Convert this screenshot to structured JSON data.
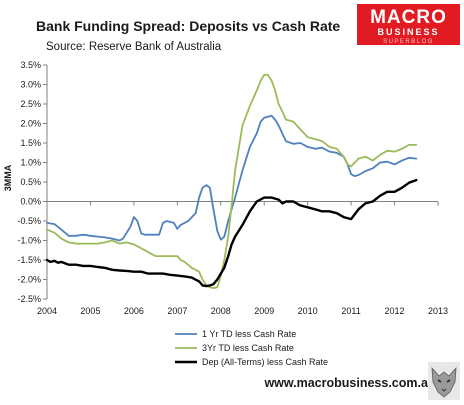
{
  "logo": {
    "main": "MACRO",
    "sub": "BUSINESS",
    "tag": "SUPERBLOG",
    "bg_color": "#e21b23",
    "bottom_icon": "wolf-head-icon"
  },
  "footer": {
    "url": "www.macrobusiness.com.au"
  },
  "chart_data": {
    "type": "line",
    "title": "Bank Funding Spread: Deposits vs Cash Rate",
    "subtitle": "Source: Reserve Bank of Australia",
    "ylabel": "3MMA",
    "xlabel": "",
    "xlim": [
      2004,
      2013
    ],
    "ylim": [
      -2.5,
      3.5
    ],
    "x_ticks": [
      2004,
      2005,
      2006,
      2007,
      2008,
      2009,
      2010,
      2011,
      2012,
      2013
    ],
    "x_tick_labels": [
      "2004",
      "2005",
      "2006",
      "2007",
      "2008",
      "2009",
      "2010",
      "2011",
      "2012",
      "2013"
    ],
    "y_ticks": [
      -2.5,
      -2.0,
      -1.5,
      -1.0,
      -0.5,
      0.0,
      0.5,
      1.0,
      1.5,
      2.0,
      2.5,
      3.0,
      3.5
    ],
    "y_tick_labels": [
      "-2.5%",
      "-2.0%",
      "-1.5%",
      "-1.0%",
      "-0.5%",
      "0.0%",
      "0.5%",
      "1.0%",
      "1.5%",
      "2.0%",
      "2.5%",
      "3.0%",
      "3.5%"
    ],
    "grid": false,
    "legend_position": "bottom-center",
    "series": [
      {
        "name": "1 Yr TD less Cash Rate",
        "color": "#4f81bd",
        "points": [
          [
            2004.0,
            -0.55
          ],
          [
            2004.17,
            -0.58
          ],
          [
            2004.33,
            -0.72
          ],
          [
            2004.5,
            -0.88
          ],
          [
            2004.67,
            -0.88
          ],
          [
            2004.83,
            -0.85
          ],
          [
            2005.0,
            -0.88
          ],
          [
            2005.17,
            -0.9
          ],
          [
            2005.33,
            -0.92
          ],
          [
            2005.5,
            -0.95
          ],
          [
            2005.67,
            -1.0
          ],
          [
            2005.75,
            -0.95
          ],
          [
            2005.92,
            -0.65
          ],
          [
            2006.0,
            -0.4
          ],
          [
            2006.08,
            -0.5
          ],
          [
            2006.17,
            -0.82
          ],
          [
            2006.25,
            -0.85
          ],
          [
            2006.42,
            -0.85
          ],
          [
            2006.58,
            -0.85
          ],
          [
            2006.67,
            -0.55
          ],
          [
            2006.75,
            -0.5
          ],
          [
            2006.92,
            -0.55
          ],
          [
            2007.0,
            -0.7
          ],
          [
            2007.08,
            -0.6
          ],
          [
            2007.25,
            -0.5
          ],
          [
            2007.42,
            -0.3
          ],
          [
            2007.5,
            0.1
          ],
          [
            2007.58,
            0.35
          ],
          [
            2007.67,
            0.42
          ],
          [
            2007.75,
            0.35
          ],
          [
            2007.83,
            -0.2
          ],
          [
            2007.92,
            -0.75
          ],
          [
            2008.0,
            -0.98
          ],
          [
            2008.08,
            -0.9
          ],
          [
            2008.17,
            -0.5
          ],
          [
            2008.33,
            0.1
          ],
          [
            2008.5,
            0.8
          ],
          [
            2008.67,
            1.4
          ],
          [
            2008.83,
            1.75
          ],
          [
            2008.92,
            2.05
          ],
          [
            2009.0,
            2.15
          ],
          [
            2009.17,
            2.2
          ],
          [
            2009.25,
            2.1
          ],
          [
            2009.33,
            1.95
          ],
          [
            2009.5,
            1.55
          ],
          [
            2009.67,
            1.48
          ],
          [
            2009.83,
            1.5
          ],
          [
            2010.0,
            1.4
          ],
          [
            2010.17,
            1.35
          ],
          [
            2010.33,
            1.38
          ],
          [
            2010.5,
            1.28
          ],
          [
            2010.67,
            1.25
          ],
          [
            2010.83,
            1.15
          ],
          [
            2010.92,
            0.95
          ],
          [
            2011.0,
            0.7
          ],
          [
            2011.08,
            0.65
          ],
          [
            2011.17,
            0.68
          ],
          [
            2011.33,
            0.78
          ],
          [
            2011.5,
            0.85
          ],
          [
            2011.67,
            1.0
          ],
          [
            2011.83,
            1.02
          ],
          [
            2012.0,
            0.95
          ],
          [
            2012.17,
            1.05
          ],
          [
            2012.33,
            1.12
          ],
          [
            2012.5,
            1.1
          ]
        ]
      },
      {
        "name": "3Yr TD less Cash Rate",
        "color": "#9bbb59",
        "points": [
          [
            2004.0,
            -0.72
          ],
          [
            2004.17,
            -0.8
          ],
          [
            2004.33,
            -0.95
          ],
          [
            2004.5,
            -1.05
          ],
          [
            2004.67,
            -1.08
          ],
          [
            2004.83,
            -1.08
          ],
          [
            2005.0,
            -1.08
          ],
          [
            2005.17,
            -1.08
          ],
          [
            2005.33,
            -1.05
          ],
          [
            2005.5,
            -1.0
          ],
          [
            2005.67,
            -1.08
          ],
          [
            2005.83,
            -1.05
          ],
          [
            2006.0,
            -1.1
          ],
          [
            2006.17,
            -1.2
          ],
          [
            2006.33,
            -1.3
          ],
          [
            2006.5,
            -1.4
          ],
          [
            2006.67,
            -1.4
          ],
          [
            2006.83,
            -1.4
          ],
          [
            2007.0,
            -1.4
          ],
          [
            2007.08,
            -1.5
          ],
          [
            2007.17,
            -1.55
          ],
          [
            2007.33,
            -1.7
          ],
          [
            2007.5,
            -1.8
          ],
          [
            2007.58,
            -2.0
          ],
          [
            2007.67,
            -2.15
          ],
          [
            2007.75,
            -2.2
          ],
          [
            2007.83,
            -2.22
          ],
          [
            2007.92,
            -2.2
          ],
          [
            2008.0,
            -1.9
          ],
          [
            2008.08,
            -1.5
          ],
          [
            2008.17,
            -0.9
          ],
          [
            2008.25,
            -0.1
          ],
          [
            2008.33,
            0.8
          ],
          [
            2008.42,
            1.4
          ],
          [
            2008.5,
            1.95
          ],
          [
            2008.67,
            2.45
          ],
          [
            2008.83,
            2.85
          ],
          [
            2008.92,
            3.1
          ],
          [
            2009.0,
            3.25
          ],
          [
            2009.08,
            3.25
          ],
          [
            2009.17,
            3.1
          ],
          [
            2009.25,
            2.85
          ],
          [
            2009.33,
            2.5
          ],
          [
            2009.42,
            2.3
          ],
          [
            2009.5,
            2.1
          ],
          [
            2009.67,
            2.05
          ],
          [
            2009.83,
            1.85
          ],
          [
            2010.0,
            1.65
          ],
          [
            2010.17,
            1.6
          ],
          [
            2010.33,
            1.55
          ],
          [
            2010.5,
            1.4
          ],
          [
            2010.67,
            1.35
          ],
          [
            2010.83,
            1.15
          ],
          [
            2010.92,
            0.95
          ],
          [
            2011.0,
            0.9
          ],
          [
            2011.17,
            1.1
          ],
          [
            2011.33,
            1.15
          ],
          [
            2011.5,
            1.05
          ],
          [
            2011.67,
            1.2
          ],
          [
            2011.83,
            1.3
          ],
          [
            2012.0,
            1.28
          ],
          [
            2012.17,
            1.35
          ],
          [
            2012.33,
            1.45
          ],
          [
            2012.5,
            1.45
          ]
        ]
      },
      {
        "name": "Dep (All-Terms) less Cash Rate",
        "color": "#000000",
        "points": [
          [
            2004.0,
            -1.5
          ],
          [
            2004.08,
            -1.55
          ],
          [
            2004.17,
            -1.52
          ],
          [
            2004.25,
            -1.57
          ],
          [
            2004.33,
            -1.55
          ],
          [
            2004.5,
            -1.62
          ],
          [
            2004.67,
            -1.62
          ],
          [
            2004.83,
            -1.65
          ],
          [
            2005.0,
            -1.65
          ],
          [
            2005.17,
            -1.68
          ],
          [
            2005.33,
            -1.7
          ],
          [
            2005.5,
            -1.75
          ],
          [
            2005.67,
            -1.77
          ],
          [
            2005.83,
            -1.78
          ],
          [
            2006.0,
            -1.8
          ],
          [
            2006.17,
            -1.8
          ],
          [
            2006.33,
            -1.85
          ],
          [
            2006.5,
            -1.85
          ],
          [
            2006.67,
            -1.85
          ],
          [
            2006.83,
            -1.88
          ],
          [
            2007.0,
            -1.9
          ],
          [
            2007.17,
            -1.92
          ],
          [
            2007.33,
            -1.95
          ],
          [
            2007.5,
            -2.05
          ],
          [
            2007.58,
            -2.15
          ],
          [
            2007.67,
            -2.17
          ],
          [
            2007.75,
            -2.15
          ],
          [
            2007.83,
            -2.12
          ],
          [
            2007.92,
            -2.0
          ],
          [
            2008.0,
            -1.85
          ],
          [
            2008.08,
            -1.7
          ],
          [
            2008.17,
            -1.4
          ],
          [
            2008.25,
            -1.1
          ],
          [
            2008.33,
            -0.9
          ],
          [
            2008.5,
            -0.6
          ],
          [
            2008.67,
            -0.25
          ],
          [
            2008.83,
            0.0
          ],
          [
            2009.0,
            0.1
          ],
          [
            2009.17,
            0.1
          ],
          [
            2009.33,
            0.05
          ],
          [
            2009.42,
            -0.05
          ],
          [
            2009.5,
            0.0
          ],
          [
            2009.67,
            0.0
          ],
          [
            2009.83,
            -0.1
          ],
          [
            2010.0,
            -0.15
          ],
          [
            2010.17,
            -0.2
          ],
          [
            2010.33,
            -0.25
          ],
          [
            2010.5,
            -0.25
          ],
          [
            2010.67,
            -0.3
          ],
          [
            2010.83,
            -0.4
          ],
          [
            2011.0,
            -0.45
          ],
          [
            2011.17,
            -0.2
          ],
          [
            2011.33,
            -0.05
          ],
          [
            2011.5,
            0.0
          ],
          [
            2011.67,
            0.15
          ],
          [
            2011.83,
            0.25
          ],
          [
            2012.0,
            0.25
          ],
          [
            2012.17,
            0.35
          ],
          [
            2012.33,
            0.48
          ],
          [
            2012.5,
            0.55
          ]
        ]
      }
    ]
  }
}
